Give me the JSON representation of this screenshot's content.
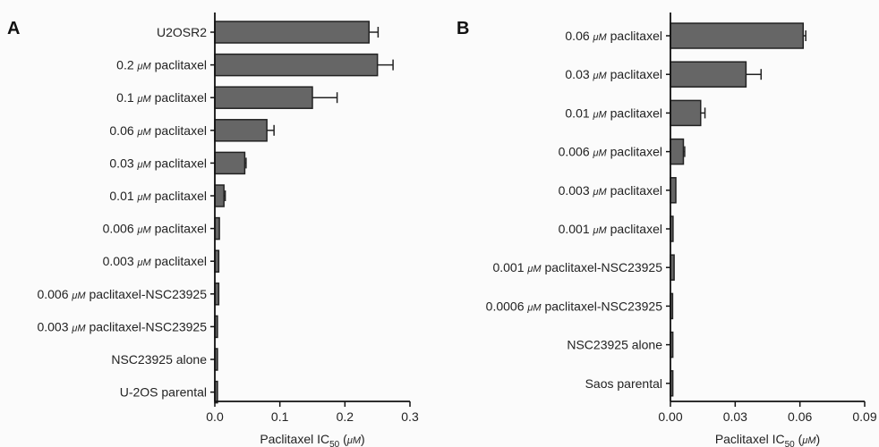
{
  "chart_data": [
    {
      "type": "bar",
      "orientation": "horizontal",
      "panel_label": "A",
      "categories": [
        {
          "pre": "U2OSR2",
          "unit": "",
          "post": ""
        },
        {
          "pre": "0.2 ",
          "unit": "μM",
          "post": " paclitaxel"
        },
        {
          "pre": "0.1 ",
          "unit": "μM",
          "post": " paclitaxel"
        },
        {
          "pre": "0.06 ",
          "unit": "μM",
          "post": " paclitaxel"
        },
        {
          "pre": "0.03 ",
          "unit": "μM",
          "post": " paclitaxel"
        },
        {
          "pre": "0.01 ",
          "unit": "μM",
          "post": " paclitaxel"
        },
        {
          "pre": "0.006 ",
          "unit": "μM",
          "post": " paclitaxel"
        },
        {
          "pre": "0.003 ",
          "unit": "μM",
          "post": " paclitaxel"
        },
        {
          "pre": "0.006 ",
          "unit": "μM",
          "post": " paclitaxel-NSC23925"
        },
        {
          "pre": "0.003 ",
          "unit": "μM",
          "post": " paclitaxel-NSC23925"
        },
        {
          "pre": "NSC23925 alone",
          "unit": "",
          "post": ""
        },
        {
          "pre": "U-2OS parental",
          "unit": "",
          "post": ""
        }
      ],
      "values": [
        0.237,
        0.25,
        0.15,
        0.08,
        0.046,
        0.014,
        0.007,
        0.006,
        0.006,
        0.004,
        0.004,
        0.004
      ],
      "errors": [
        0.014,
        0.024,
        0.038,
        0.011,
        0.002,
        0.002,
        0.001,
        0.001,
        0.001,
        0.001,
        0.001,
        0.001
      ],
      "xlim": [
        0,
        0.3
      ],
      "xticks": [
        "0.0",
        "0.1",
        "0.2",
        "0.3"
      ],
      "xlabel": {
        "pre": "Paclitaxel IC",
        "sub": "50",
        "mid": " (",
        "unit": "μM",
        "post": ")"
      }
    },
    {
      "type": "bar",
      "orientation": "horizontal",
      "panel_label": "B",
      "categories": [
        {
          "pre": "0.06 ",
          "unit": "μM",
          "post": " paclitaxel"
        },
        {
          "pre": "0.03 ",
          "unit": "μM",
          "post": " paclitaxel"
        },
        {
          "pre": "0.01 ",
          "unit": "μM",
          "post": " paclitaxel"
        },
        {
          "pre": "0.006 ",
          "unit": "μM",
          "post": " paclitaxel"
        },
        {
          "pre": "0.003 ",
          "unit": "μM",
          "post": " paclitaxel"
        },
        {
          "pre": "0.001 ",
          "unit": "μM",
          "post": " paclitaxel"
        },
        {
          "pre": "0.001 ",
          "unit": "μM",
          "post": " paclitaxel-NSC23925"
        },
        {
          "pre": "0.0006 ",
          "unit": "μM",
          "post": " paclitaxel-NSC23925"
        },
        {
          "pre": "NSC23925 alone",
          "unit": "",
          "post": ""
        },
        {
          "pre": "Saos parental",
          "unit": "",
          "post": ""
        }
      ],
      "values": [
        0.0615,
        0.035,
        0.014,
        0.006,
        0.0025,
        0.0012,
        0.0017,
        0.001,
        0.0011,
        0.0011
      ],
      "errors": [
        0.0012,
        0.007,
        0.002,
        0.0006,
        0.0003,
        0.0002,
        0.0002,
        0.0001,
        0.0001,
        0.0001
      ],
      "xlim": [
        0,
        0.09
      ],
      "xticks": [
        "0.00",
        "0.03",
        "0.06",
        "0.09"
      ],
      "xlabel": {
        "pre": "Paclitaxel IC",
        "sub": "50",
        "mid": " (",
        "unit": "μM",
        "post": ")"
      }
    }
  ],
  "colors": {
    "bar_fill": "#666666",
    "bar_stroke": "#222222",
    "axis": "#111111"
  }
}
